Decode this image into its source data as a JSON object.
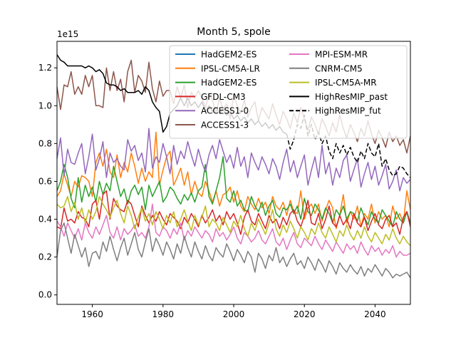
{
  "chart_data": {
    "type": "line",
    "title": "Month 5, spole",
    "xlabel": "",
    "ylabel": "",
    "y_offset_label": "1e15",
    "xlim": [
      1950,
      2050
    ],
    "ylim": [
      -0.05,
      1.34
    ],
    "x_ticks": [
      1960,
      1980,
      2000,
      2020,
      2040
    ],
    "y_ticks": [
      0.0,
      0.2,
      0.4,
      0.6,
      0.8,
      1.0,
      1.2
    ],
    "y_tick_labels": [
      "0.0",
      "0.2",
      "0.4",
      "0.6",
      "0.8",
      "1.0",
      "1.2"
    ],
    "grid": false,
    "legend_placement": "top-right",
    "legend_columns": 2,
    "series": [
      {
        "name": "HadGEM2-ES",
        "color": "#1f77b4",
        "dash": "solid",
        "start": 1950,
        "values": []
      },
      {
        "name": "IPSL-CM5A-LR",
        "color": "#ff7f0e",
        "dash": "solid",
        "start": 1950,
        "values": [
          0.52,
          0.55,
          0.64,
          0.58,
          0.52,
          0.6,
          0.57,
          0.63,
          0.62,
          0.6,
          0.52,
          0.7,
          0.75,
          0.68,
          0.77,
          0.65,
          0.62,
          0.74,
          0.62,
          0.7,
          0.65,
          0.75,
          0.68,
          0.59,
          0.67,
          0.6,
          0.65,
          0.62,
          0.86,
          0.58,
          0.66,
          0.73,
          0.76,
          0.58,
          0.62,
          0.67,
          0.58,
          0.65,
          0.53,
          0.6,
          0.54,
          0.52,
          0.6,
          0.55,
          0.49,
          0.55,
          0.47,
          0.53,
          0.54,
          0.57,
          0.49,
          0.55,
          0.47,
          0.44,
          0.52,
          0.48,
          0.45,
          0.51,
          0.46,
          0.49,
          0.43,
          0.52,
          0.47,
          0.45,
          0.49,
          0.42,
          0.5,
          0.44,
          0.43,
          0.55,
          0.4,
          0.46,
          0.48,
          0.43,
          0.48,
          0.39,
          0.45,
          0.5,
          0.46,
          0.35,
          0.42,
          0.53,
          0.38,
          0.44,
          0.4,
          0.47,
          0.36,
          0.43,
          0.4,
          0.48,
          0.38,
          0.44,
          0.4,
          0.42,
          0.36,
          0.47,
          0.4,
          0.43,
          0.38,
          0.55,
          0.45
        ]
      },
      {
        "name": "HadGEM2-ES",
        "color": "#2ca02c",
        "dash": "solid",
        "start": 1950,
        "values": [
          0.55,
          0.6,
          0.69,
          0.62,
          0.51,
          0.46,
          0.62,
          0.49,
          0.58,
          0.52,
          0.57,
          0.49,
          0.6,
          0.53,
          0.59,
          0.55,
          0.68,
          0.6,
          0.52,
          0.56,
          0.48,
          0.55,
          0.58,
          0.53,
          0.57,
          0.45,
          0.58,
          0.52,
          0.56,
          0.6,
          0.49,
          0.52,
          0.57,
          0.55,
          0.51,
          0.48,
          0.53,
          0.5,
          0.54,
          0.49,
          0.55,
          0.57,
          0.69,
          0.52,
          0.48,
          0.55,
          0.62,
          0.73,
          0.51,
          0.49,
          0.55,
          0.47,
          0.5,
          0.45,
          0.44,
          0.52,
          0.47,
          0.44,
          0.49,
          0.42,
          0.47,
          0.5,
          0.43,
          0.41,
          0.46,
          0.45,
          0.48,
          0.43,
          0.47,
          0.4,
          0.51,
          0.44,
          0.42,
          0.48,
          0.45,
          0.4,
          0.46,
          0.43,
          0.38,
          0.45,
          0.42,
          0.47,
          0.4,
          0.44,
          0.43,
          0.39,
          0.46,
          0.41,
          0.37,
          0.44,
          0.4,
          0.38,
          0.45,
          0.42,
          0.39,
          0.36,
          0.44,
          0.4,
          0.38,
          0.44,
          0.38
        ]
      },
      {
        "name": "GFDL-CM3",
        "color": "#d62728",
        "dash": "solid",
        "start": 1950,
        "values": [
          0.36,
          0.35,
          0.46,
          0.39,
          0.4,
          0.38,
          0.44,
          0.41,
          0.4,
          0.36,
          0.48,
          0.5,
          0.4,
          0.53,
          0.55,
          0.4,
          0.51,
          0.47,
          0.45,
          0.44,
          0.5,
          0.48,
          0.42,
          0.36,
          0.47,
          0.42,
          0.38,
          0.42,
          0.39,
          0.44,
          0.4,
          0.37,
          0.43,
          0.41,
          0.39,
          0.35,
          0.41,
          0.38,
          0.43,
          0.4,
          0.36,
          0.42,
          0.38,
          0.41,
          0.45,
          0.39,
          0.42,
          0.37,
          0.44,
          0.4,
          0.43,
          0.38,
          0.32,
          0.41,
          0.45,
          0.39,
          0.37,
          0.43,
          0.39,
          0.35,
          0.42,
          0.38,
          0.4,
          0.35,
          0.41,
          0.37,
          0.43,
          0.45,
          0.39,
          0.36,
          0.42,
          0.5,
          0.38,
          0.37,
          0.43,
          0.35,
          0.4,
          0.47,
          0.38,
          0.36,
          0.42,
          0.37,
          0.4,
          0.35,
          0.43,
          0.38,
          0.36,
          0.41,
          0.34,
          0.39,
          0.43,
          0.37,
          0.35,
          0.4,
          0.42,
          0.36,
          0.38,
          0.32,
          0.41,
          0.44,
          0.36
        ]
      },
      {
        "name": "ACCESS1-0",
        "color": "#9467bd",
        "dash": "solid",
        "start": 1950,
        "values": [
          0.72,
          0.83,
          0.63,
          0.77,
          0.7,
          0.69,
          0.75,
          0.8,
          0.64,
          0.73,
          0.85,
          0.66,
          0.72,
          0.81,
          0.62,
          0.75,
          0.7,
          0.72,
          0.68,
          0.66,
          0.82,
          0.76,
          0.79,
          0.71,
          0.75,
          0.65,
          0.88,
          0.67,
          0.73,
          0.7,
          0.8,
          0.73,
          0.64,
          0.79,
          0.69,
          0.76,
          0.72,
          0.81,
          0.74,
          0.68,
          0.77,
          0.7,
          0.65,
          0.74,
          0.79,
          0.72,
          0.82,
          0.76,
          0.7,
          0.74,
          0.67,
          0.78,
          0.68,
          0.73,
          0.62,
          0.75,
          0.7,
          0.66,
          0.73,
          0.69,
          0.64,
          0.72,
          0.68,
          0.61,
          0.7,
          0.77,
          0.65,
          0.71,
          0.62,
          0.68,
          0.74,
          0.58,
          0.66,
          0.73,
          0.62,
          0.79,
          0.64,
          0.7,
          0.58,
          0.67,
          0.62,
          0.71,
          0.74,
          0.6,
          0.66,
          0.72,
          0.57,
          0.64,
          0.7,
          0.61,
          0.68,
          0.58,
          0.63,
          0.69,
          0.56,
          0.6,
          0.66,
          0.55,
          0.62,
          0.59,
          0.61
        ]
      },
      {
        "name": "ACCESS1-3",
        "color": "#8c564b",
        "dash": "solid",
        "start": 1950,
        "values": [
          1.1,
          0.98,
          1.11,
          1.1,
          1.18,
          1.06,
          1.1,
          1.06,
          1.16,
          1.1,
          1.16,
          1.0,
          1.0,
          0.99,
          1.2,
          1.08,
          1.18,
          1.08,
          1.14,
          1.02,
          1.18,
          1.24,
          1.07,
          1.16,
          1.13,
          1.07,
          1.23,
          1.09,
          1.02,
          1.13,
          1.05,
          1.08,
          1.08,
          1.01,
          1.1,
          1.04,
          1.11,
          0.99,
          1.07,
          1.04,
          1.08,
          1.04,
          0.99,
          1.06,
          1.03,
          0.96,
          1.04,
          0.98,
          1.01,
          0.93,
          1.06,
          1.0,
          0.96,
          1.03,
          0.94,
          0.99,
          1.02,
          0.92,
          0.99,
          0.96,
          0.93,
          1.01,
          0.95,
          0.9,
          0.97,
          0.93,
          0.88,
          0.96,
          0.91,
          0.99,
          0.93,
          0.87,
          0.94,
          0.9,
          0.85,
          0.93,
          0.89,
          0.84,
          0.91,
          0.86,
          0.95,
          0.88,
          0.83,
          0.9,
          0.86,
          0.81,
          0.88,
          0.84,
          0.92,
          0.85,
          0.8,
          0.87,
          0.83,
          0.78,
          0.86,
          0.81,
          0.84,
          0.79,
          0.82,
          0.75,
          0.84
        ]
      },
      {
        "name": "MPI-ESM-MR",
        "color": "#e377c2",
        "dash": "solid",
        "start": 1950,
        "values": [
          0.39,
          0.36,
          0.31,
          0.38,
          0.34,
          0.3,
          0.35,
          0.29,
          0.38,
          0.33,
          0.3,
          0.36,
          0.32,
          0.37,
          0.42,
          0.33,
          0.3,
          0.36,
          0.29,
          0.35,
          0.32,
          0.34,
          0.37,
          0.31,
          0.33,
          0.3,
          0.36,
          0.48,
          0.33,
          0.31,
          0.36,
          0.34,
          0.3,
          0.35,
          0.32,
          0.38,
          0.29,
          0.34,
          0.31,
          0.36,
          0.33,
          0.3,
          0.34,
          0.32,
          0.28,
          0.35,
          0.31,
          0.33,
          0.29,
          0.32,
          0.36,
          0.3,
          0.27,
          0.33,
          0.31,
          0.28,
          0.3,
          0.34,
          0.29,
          0.27,
          0.31,
          0.35,
          0.28,
          0.26,
          0.3,
          0.24,
          0.29,
          0.33,
          0.27,
          0.25,
          0.3,
          0.28,
          0.26,
          0.31,
          0.27,
          0.24,
          0.29,
          0.26,
          0.23,
          0.28,
          0.25,
          0.22,
          0.27,
          0.24,
          0.26,
          0.22,
          0.28,
          0.24,
          0.21,
          0.26,
          0.23,
          0.25,
          0.21,
          0.24,
          0.22,
          0.26,
          0.2,
          0.23,
          0.21,
          0.21,
          0.22
        ]
      },
      {
        "name": "CNRM-CM5",
        "color": "#7f7f7f",
        "dash": "solid",
        "start": 1950,
        "values": [
          0.2,
          0.34,
          0.38,
          0.3,
          0.22,
          0.32,
          0.26,
          0.2,
          0.25,
          0.15,
          0.22,
          0.23,
          0.19,
          0.28,
          0.23,
          0.31,
          0.24,
          0.18,
          0.25,
          0.3,
          0.21,
          0.27,
          0.33,
          0.24,
          0.2,
          0.28,
          0.35,
          0.23,
          0.3,
          0.26,
          0.21,
          0.28,
          0.24,
          0.19,
          0.27,
          0.22,
          0.31,
          0.25,
          0.2,
          0.28,
          0.23,
          0.19,
          0.26,
          0.21,
          0.18,
          0.25,
          0.22,
          0.2,
          0.27,
          0.23,
          0.18,
          0.24,
          0.21,
          0.17,
          0.23,
          0.2,
          0.12,
          0.22,
          0.19,
          0.14,
          0.21,
          0.18,
          0.25,
          0.17,
          0.2,
          0.15,
          0.19,
          0.22,
          0.16,
          0.18,
          0.14,
          0.2,
          0.17,
          0.13,
          0.19,
          0.16,
          0.12,
          0.18,
          0.15,
          0.11,
          0.17,
          0.14,
          0.12,
          0.16,
          0.13,
          0.11,
          0.15,
          0.1,
          0.14,
          0.12,
          0.16,
          0.13,
          0.1,
          0.14,
          0.12,
          0.09,
          0.11,
          0.1,
          0.11,
          0.12,
          0.09
        ]
      },
      {
        "name": "IPSL-CM5A-MR",
        "color": "#bcbd22",
        "dash": "solid",
        "start": 1950,
        "values": [
          0.48,
          0.46,
          0.47,
          0.52,
          0.44,
          0.49,
          0.4,
          0.46,
          0.38,
          0.45,
          0.4,
          0.44,
          0.52,
          0.48,
          0.45,
          0.41,
          0.46,
          0.5,
          0.43,
          0.38,
          0.47,
          0.42,
          0.35,
          0.41,
          0.46,
          0.39,
          0.43,
          0.37,
          0.44,
          0.4,
          0.35,
          0.42,
          0.38,
          0.44,
          0.36,
          0.4,
          0.45,
          0.39,
          0.34,
          0.42,
          0.37,
          0.41,
          0.47,
          0.36,
          0.4,
          0.38,
          0.34,
          0.41,
          0.37,
          0.33,
          0.39,
          0.36,
          0.42,
          0.35,
          0.31,
          0.38,
          0.34,
          0.4,
          0.36,
          0.32,
          0.38,
          0.45,
          0.35,
          0.31,
          0.37,
          0.33,
          0.39,
          0.35,
          0.3,
          0.36,
          0.33,
          0.29,
          0.35,
          0.32,
          0.38,
          0.33,
          0.3,
          0.36,
          0.32,
          0.28,
          0.34,
          0.31,
          0.37,
          0.32,
          0.29,
          0.34,
          0.3,
          0.36,
          0.31,
          0.28,
          0.33,
          0.3,
          0.27,
          0.32,
          0.29,
          0.35,
          0.3,
          0.27,
          0.31,
          0.28,
          0.26
        ]
      },
      {
        "name": "HighResMIP_past",
        "color": "#000000",
        "dash": "solid",
        "start": 1950,
        "values": [
          1.27,
          1.24,
          1.23,
          1.21,
          1.21,
          1.21,
          1.21,
          1.21,
          1.2,
          1.21,
          1.2,
          1.18,
          1.19,
          1.17,
          1.12,
          1.11,
          1.11,
          1.1,
          1.08,
          1.09,
          1.07,
          1.07,
          1.07,
          1.08,
          1.06,
          1.1,
          1.08,
          1.02,
          0.99,
          0.97,
          0.86,
          0.89,
          0.96,
          0.98,
          1.0,
          1.04,
          1.0,
          1.04,
          1.0,
          1.02,
          0.99,
          1.02,
          0.97,
          1.0,
          0.97,
          0.99,
          0.96,
          0.98,
          0.95,
          0.97,
          0.93,
          0.95,
          0.92,
          0.94,
          0.91,
          0.93,
          0.9,
          0.92,
          0.89,
          0.91,
          0.88,
          0.9,
          0.87,
          0.89,
          0.86,
          0.85
        ]
      },
      {
        "name": "HighResMIP_fut",
        "color": "#000000",
        "dash": "dashed",
        "start": 2015,
        "values": [
          0.85,
          0.77,
          0.82,
          0.9,
          0.88,
          0.95,
          0.84,
          0.9,
          0.82,
          0.86,
          0.8,
          0.84,
          0.76,
          0.72,
          0.8,
          0.75,
          0.79,
          0.74,
          0.78,
          0.73,
          0.7,
          0.76,
          0.72,
          0.8,
          0.75,
          0.73,
          0.8,
          0.68,
          0.72,
          0.66,
          0.63,
          0.64,
          0.68,
          0.67,
          0.64,
          0.62,
          0.6,
          0.62,
          0.64,
          0.63,
          0.66,
          0.63,
          0.65,
          0.61,
          0.6,
          0.62,
          0.64,
          0.62,
          0.65,
          0.64,
          0.67
        ]
      }
    ]
  }
}
